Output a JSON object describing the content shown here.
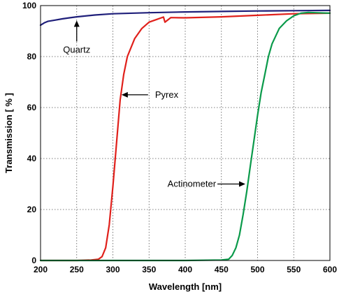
{
  "chart_data": {
    "type": "line",
    "title": "",
    "xlabel": "Wavelength [nm]",
    "ylabel": "Transmission [ % ]",
    "xlim": [
      200,
      600
    ],
    "ylim": [
      0,
      100
    ],
    "x_ticks": [
      200,
      250,
      300,
      350,
      400,
      450,
      500,
      550,
      600
    ],
    "y_ticks": [
      0,
      20,
      40,
      60,
      80,
      100
    ],
    "grid": true,
    "legend": "none",
    "series": [
      {
        "name": "Quartz",
        "color": "#1f1f7a",
        "x": [
          200,
          205,
          210,
          220,
          230,
          240,
          250,
          275,
          300,
          350,
          400,
          450,
          500,
          550,
          600
        ],
        "y": [
          92.3,
          93.2,
          93.8,
          94.3,
          94.8,
          95.2,
          95.6,
          96.3,
          96.8,
          97.2,
          97.5,
          97.7,
          97.9,
          98.0,
          98.1
        ]
      },
      {
        "name": "Pyrex",
        "color": "#e0201b",
        "x": [
          200,
          250,
          270,
          280,
          285,
          290,
          295,
          300,
          305,
          310,
          315,
          320,
          330,
          340,
          350,
          360,
          370,
          372,
          380,
          400,
          450,
          500,
          550,
          600
        ],
        "y": [
          0,
          0,
          0.2,
          0.5,
          1.5,
          5,
          14,
          29,
          46,
          63,
          73,
          80,
          87,
          91,
          93.5,
          94.5,
          95.5,
          93.5,
          95.3,
          95.2,
          95.6,
          96.2,
          96.8,
          97.0
        ]
      },
      {
        "name": "Actinometer",
        "color": "#0a9a4a",
        "x": [
          200,
          300,
          400,
          450,
          460,
          465,
          470,
          475,
          480,
          485,
          490,
          495,
          500,
          505,
          510,
          515,
          520,
          530,
          540,
          550,
          560,
          570,
          580,
          600
        ],
        "y": [
          0,
          0,
          0,
          0.2,
          0.5,
          2,
          5,
          10,
          18,
          27,
          37,
          47,
          57,
          66,
          73,
          80,
          85,
          91,
          94,
          96,
          97,
          97.3,
          97.2,
          97.0
        ]
      }
    ],
    "annotations": [
      {
        "label": "Quartz",
        "target_x": 250,
        "target_y": 95.5
      },
      {
        "label": "Pyrex",
        "target_x": 310,
        "target_y": 65
      },
      {
        "label": "Actinometer",
        "target_x": 487,
        "target_y": 30
      }
    ]
  }
}
